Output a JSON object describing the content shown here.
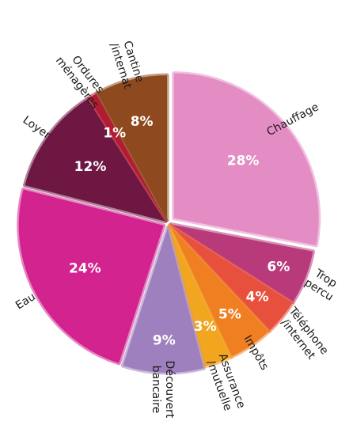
{
  "chart_data": {
    "type": "pie",
    "title": "",
    "slices": [
      {
        "label": "Chauffage",
        "value": 28,
        "value_label": "28%",
        "color": "#E48DC4"
      },
      {
        "label": "Trop percu",
        "value": 6,
        "value_label": "6%",
        "color": "#B83A7A"
      },
      {
        "label": "Téléphone /internet",
        "value": 4,
        "value_label": "4%",
        "color": "#E8503E"
      },
      {
        "label": "Impôts",
        "value": 5,
        "value_label": "5%",
        "color": "#F07F22"
      },
      {
        "label": "Assurance /mutuelle",
        "value": 3,
        "value_label": "3%",
        "color": "#F2A51F"
      },
      {
        "label": "Découvert bancaire",
        "value": 9,
        "value_label": "9%",
        "color": "#9E80BF"
      },
      {
        "label": "Eau",
        "value": 24,
        "value_label": "24%",
        "color": "#D2238E"
      },
      {
        "label": "Loyer",
        "value": 12,
        "value_label": "12%",
        "color": "#6E1743"
      },
      {
        "label": "Ordures ménagères",
        "value": 1,
        "value_label": "1%",
        "color": "#B41B33"
      },
      {
        "label": "Cantine /internat",
        "value": 8,
        "value_label": "8%",
        "color": "#8E4A1E"
      }
    ]
  }
}
